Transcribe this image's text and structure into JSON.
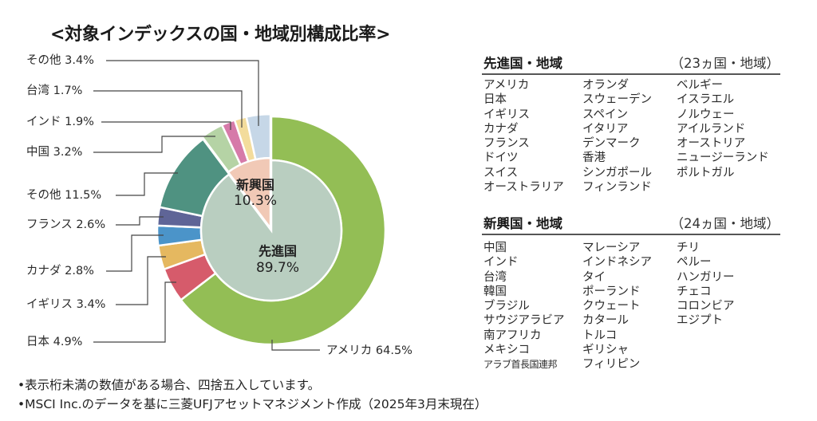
{
  "chart_data": {
    "type": "pie",
    "title": "<対象インデックスの国・地域別構成比率>",
    "inner": [
      {
        "label": "先進国",
        "value": 89.7,
        "value_label": "89.7%",
        "color": "#b9cec0"
      },
      {
        "label": "新興国",
        "value": 10.3,
        "value_label": "10.3%",
        "color": "#f1c9b6"
      }
    ],
    "outer": [
      {
        "label": "アメリカ",
        "value": 64.5,
        "text": "アメリカ 64.5%",
        "group": 0,
        "color": "#93be55"
      },
      {
        "label": "日本",
        "value": 4.9,
        "text": "日本 4.9%",
        "group": 0,
        "color": "#d65b6b"
      },
      {
        "label": "イギリス",
        "value": 3.4,
        "text": "イギリス 3.4%",
        "group": 0,
        "color": "#e5b860"
      },
      {
        "label": "カナダ",
        "value": 2.8,
        "text": "カナダ 2.8%",
        "group": 0,
        "color": "#4b94c9"
      },
      {
        "label": "フランス",
        "value": 2.6,
        "text": "フランス 2.6%",
        "group": 0,
        "color": "#5f6597"
      },
      {
        "label": "その他",
        "value": 11.5,
        "text": "その他 11.5%",
        "group": 0,
        "color": "#4f9281"
      },
      {
        "label": "中国",
        "value": 3.2,
        "text": "中国 3.2%",
        "group": 1,
        "color": "#b5d3a5"
      },
      {
        "label": "インド",
        "value": 1.9,
        "text": "インド 1.9%",
        "group": 1,
        "color": "#d67aa9"
      },
      {
        "label": "台湾",
        "value": 1.7,
        "text": "台湾 1.7%",
        "group": 1,
        "color": "#f3dc9c"
      },
      {
        "label": "その他",
        "value": 3.4,
        "text": "その他 3.4%",
        "group": 1,
        "color": "#c6d7e7"
      }
    ]
  },
  "developed": {
    "heading": "先進国・地域",
    "count": "（23ヵ国・地域）",
    "columns": [
      [
        "アメリカ",
        "日本",
        "イギリス",
        "カナダ",
        "フランス",
        "ドイツ",
        "スイス",
        "オーストラリア"
      ],
      [
        "オランダ",
        "スウェーデン",
        "スペイン",
        "イタリア",
        "デンマーク",
        "香港",
        "シンガポール",
        "フィンランド"
      ],
      [
        "ベルギー",
        "イスラエル",
        "ノルウェー",
        "アイルランド",
        "オーストリア",
        "ニュージーランド",
        "ポルトガル"
      ]
    ]
  },
  "emerging": {
    "heading": "新興国・地域",
    "count": "（24ヵ国・地域）",
    "columns": [
      [
        "中国",
        "インド",
        "台湾",
        "韓国",
        "ブラジル",
        "サウジアラビア",
        "南アフリカ",
        "メキシコ",
        "アラブ首長国連邦"
      ],
      [
        "マレーシア",
        "インドネシア",
        "タイ",
        "ポーランド",
        "クウェート",
        "カタール",
        "トルコ",
        "ギリシャ",
        "フィリピン"
      ],
      [
        "チリ",
        "ペルー",
        "ハンガリー",
        "チェコ",
        "コロンビア",
        "エジプト"
      ]
    ]
  },
  "footnotes": [
    "•表示桁未満の数値がある場合、四捨五入しています。",
    "•MSCI Inc.のデータを基に三菱UFJアセットマネジメント作成（2025年3月末現在）"
  ]
}
